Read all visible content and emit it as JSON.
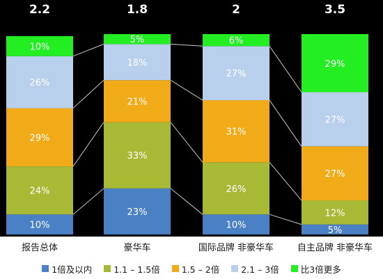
{
  "chart_data": {
    "type": "bar",
    "stacked": true,
    "percent": true,
    "categories": [
      "报告总体",
      "豪华车",
      "国际品牌 非豪华车",
      "自主品牌 非豪华车"
    ],
    "top_values": [
      "2.2",
      "1.8",
      "2",
      "3.5"
    ],
    "series": [
      {
        "name": "1倍及以内",
        "color": "#4a80c4",
        "values": [
          10,
          23,
          10,
          5
        ],
        "labels": [
          "10%",
          "23%",
          "10%",
          "5%"
        ]
      },
      {
        "name": "1.1 – 1.5倍",
        "color": "#a8b935",
        "values": [
          24,
          33,
          26,
          12
        ],
        "labels": [
          "24%",
          "33%",
          "26%",
          "12%"
        ]
      },
      {
        "name": "1.5 – 2倍",
        "color": "#f1ab18",
        "values": [
          29,
          21,
          31,
          27
        ],
        "labels": [
          "29%",
          "21%",
          "31%",
          "27%"
        ]
      },
      {
        "name": "2.1 – 3倍",
        "color": "#b8d0ec",
        "values": [
          26,
          18,
          27,
          27
        ],
        "labels": [
          "26%",
          "18%",
          "27%",
          "27%"
        ]
      },
      {
        "name": "比3倍更多",
        "color": "#22ee22",
        "values": [
          10,
          5,
          6,
          29
        ],
        "labels": [
          "10%",
          "5%",
          "6%",
          "29%"
        ]
      }
    ],
    "ylim": [
      0,
      100
    ],
    "grid": false,
    "legend_position": "bottom"
  }
}
